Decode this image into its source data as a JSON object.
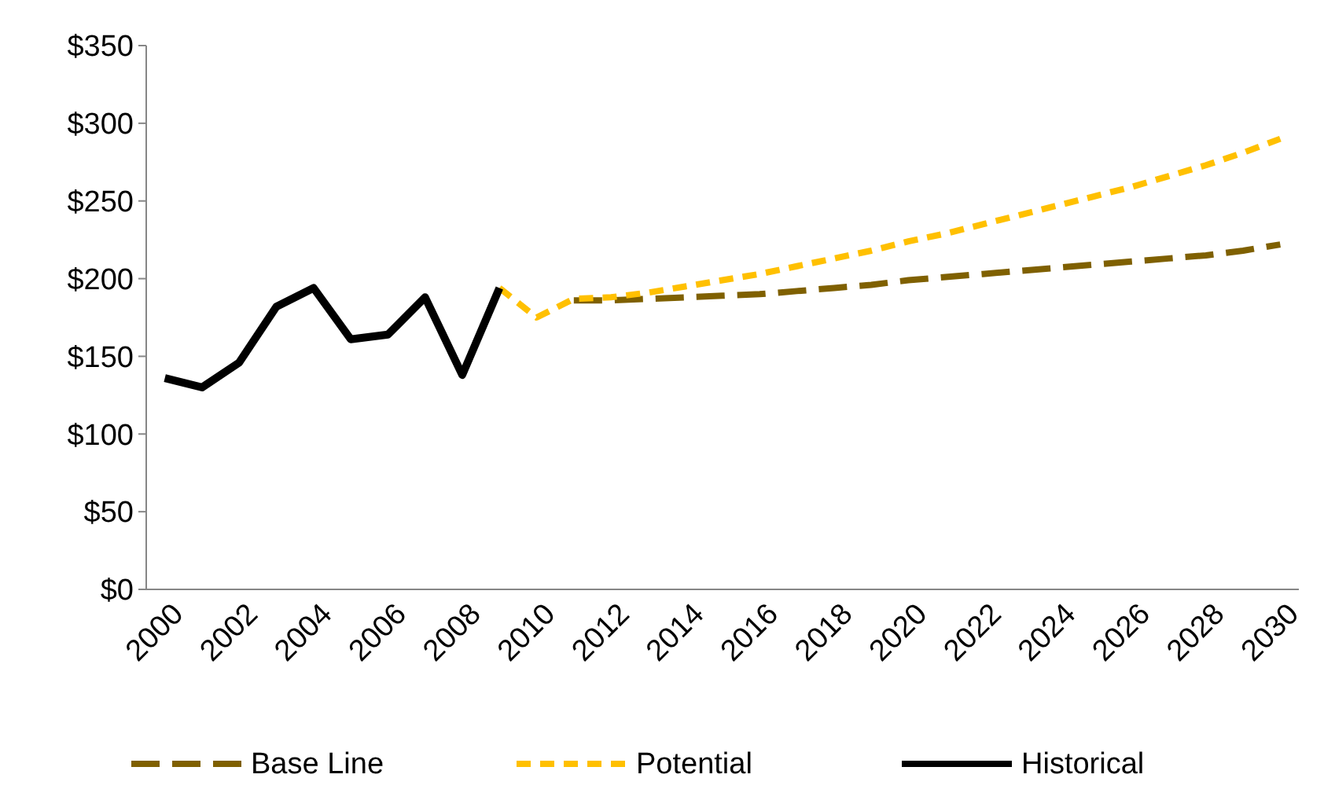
{
  "chart_data": {
    "type": "line",
    "categories": [
      "2000",
      null,
      "2002",
      null,
      "2004",
      null,
      "2006",
      null,
      "2008",
      null,
      "2010",
      null,
      "2012",
      null,
      "2014",
      null,
      "2016",
      null,
      "2018",
      null,
      "2020",
      null,
      "2022",
      null,
      "2024",
      null,
      "2026",
      null,
      "2028",
      null,
      "2030"
    ],
    "series": [
      {
        "name": "Base Line",
        "color": "#7f6000",
        "line_style": "dashed",
        "values": [
          null,
          null,
          null,
          null,
          null,
          null,
          null,
          null,
          null,
          null,
          null,
          186,
          186,
          187,
          188,
          189,
          190,
          192,
          194,
          196,
          199,
          201,
          203,
          205,
          207,
          209,
          211,
          213,
          215,
          218,
          222
        ]
      },
      {
        "name": "Potential",
        "color": "#ffc000",
        "line_style": "dotted",
        "values": [
          null,
          null,
          null,
          null,
          null,
          null,
          null,
          null,
          null,
          194,
          175,
          187,
          188,
          191,
          195,
          199,
          203,
          208,
          213,
          218,
          224,
          229,
          235,
          241,
          247,
          253,
          259,
          266,
          273,
          281,
          290
        ]
      },
      {
        "name": "Historical",
        "color": "#000000",
        "line_style": "solid",
        "values": [
          136,
          130,
          146,
          182,
          194,
          161,
          164,
          188,
          138,
          194,
          null,
          null,
          null,
          null,
          null,
          null,
          null,
          null,
          null,
          null,
          null,
          null,
          null,
          null,
          null,
          null,
          null,
          null,
          null,
          null,
          null
        ]
      }
    ],
    "ylim": [
      0,
      350
    ],
    "yticks": [
      {
        "value": 0,
        "label": "$0"
      },
      {
        "value": 50,
        "label": "$50"
      },
      {
        "value": 100,
        "label": "$100"
      },
      {
        "value": 150,
        "label": "$150"
      },
      {
        "value": 200,
        "label": "$200"
      },
      {
        "value": 250,
        "label": "$250"
      },
      {
        "value": 300,
        "label": "$300"
      },
      {
        "value": 350,
        "label": "$350"
      }
    ],
    "legend": "bottom",
    "grid": false
  }
}
